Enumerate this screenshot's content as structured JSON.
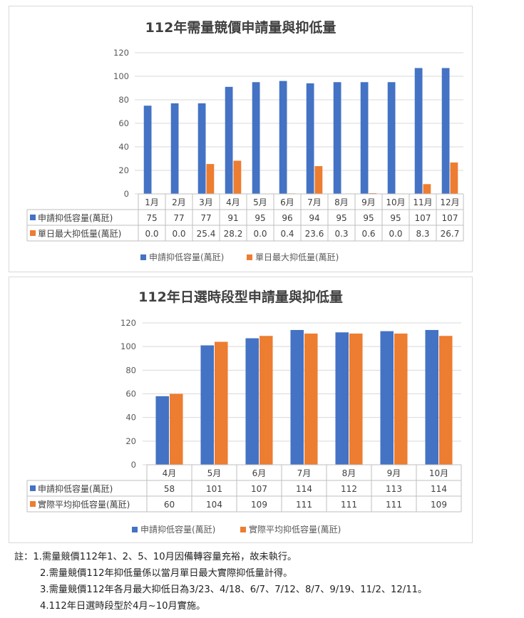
{
  "chart_data": [
    {
      "type": "bar",
      "title": "112年需量競價申請量與抑低量",
      "categories": [
        "1月",
        "2月",
        "3月",
        "4月",
        "5月",
        "6月",
        "7月",
        "8月",
        "9月",
        "10月",
        "11月",
        "12月"
      ],
      "series": [
        {
          "name": "申請抑低容量(萬瓩)",
          "color": "#4472C4",
          "values": [
            75,
            77,
            77,
            91,
            95,
            96,
            94,
            95,
            95,
            95,
            107,
            107
          ],
          "labels": [
            "75",
            "77",
            "77",
            "91",
            "95",
            "96",
            "94",
            "95",
            "95",
            "95",
            "107",
            "107"
          ]
        },
        {
          "name": "單日最大抑低量(萬瓩)",
          "color": "#ED7D31",
          "values": [
            0.0,
            0.0,
            25.4,
            28.2,
            0.0,
            0.4,
            23.6,
            0.3,
            0.6,
            0.0,
            8.3,
            26.7
          ],
          "labels": [
            "0.0",
            "0.0",
            "25.4",
            "28.2",
            "0.0",
            "0.4",
            "23.6",
            "0.3",
            "0.6",
            "0.0",
            "8.3",
            "26.7"
          ]
        }
      ],
      "yticks": [
        "0",
        "20",
        "40",
        "60",
        "80",
        "100",
        "120"
      ],
      "ylim": [
        0,
        120
      ],
      "grid": true,
      "legend": "bottom",
      "data_table": true
    },
    {
      "type": "bar",
      "title": "112年日選時段型申請量與抑低量",
      "categories": [
        "4月",
        "5月",
        "6月",
        "7月",
        "8月",
        "9月",
        "10月"
      ],
      "series": [
        {
          "name": "申請抑低容量(萬瓩)",
          "color": "#4472C4",
          "values": [
            58,
            101,
            107,
            114,
            112,
            113,
            114
          ],
          "labels": [
            "58",
            "101",
            "107",
            "114",
            "112",
            "113",
            "114"
          ]
        },
        {
          "name": "實際平均抑低容量(萬瓩)",
          "color": "#ED7D31",
          "values": [
            60,
            104,
            109,
            111,
            111,
            111,
            109
          ],
          "labels": [
            "60",
            "104",
            "109",
            "111",
            "111",
            "111",
            "109"
          ]
        }
      ],
      "yticks": [
        "0",
        "20",
        "40",
        "60",
        "80",
        "100",
        "120"
      ],
      "ylim": [
        0,
        120
      ],
      "grid": true,
      "legend": "bottom",
      "data_table": true
    }
  ],
  "notes": {
    "prefix": "註：",
    "lines": [
      "1.需量競價112年1、2、5、10月因備轉容量充裕，故未執行。",
      "2.需量競價112年抑低量係以當月單日最大實際抑低量計得。",
      "3.需量競價112年各月最大抑低日為3/23、4/18、6/7、7/12、8/7、9/19、11/2、12/11。",
      "4.112年日選時段型於4月~10月實施。"
    ]
  }
}
